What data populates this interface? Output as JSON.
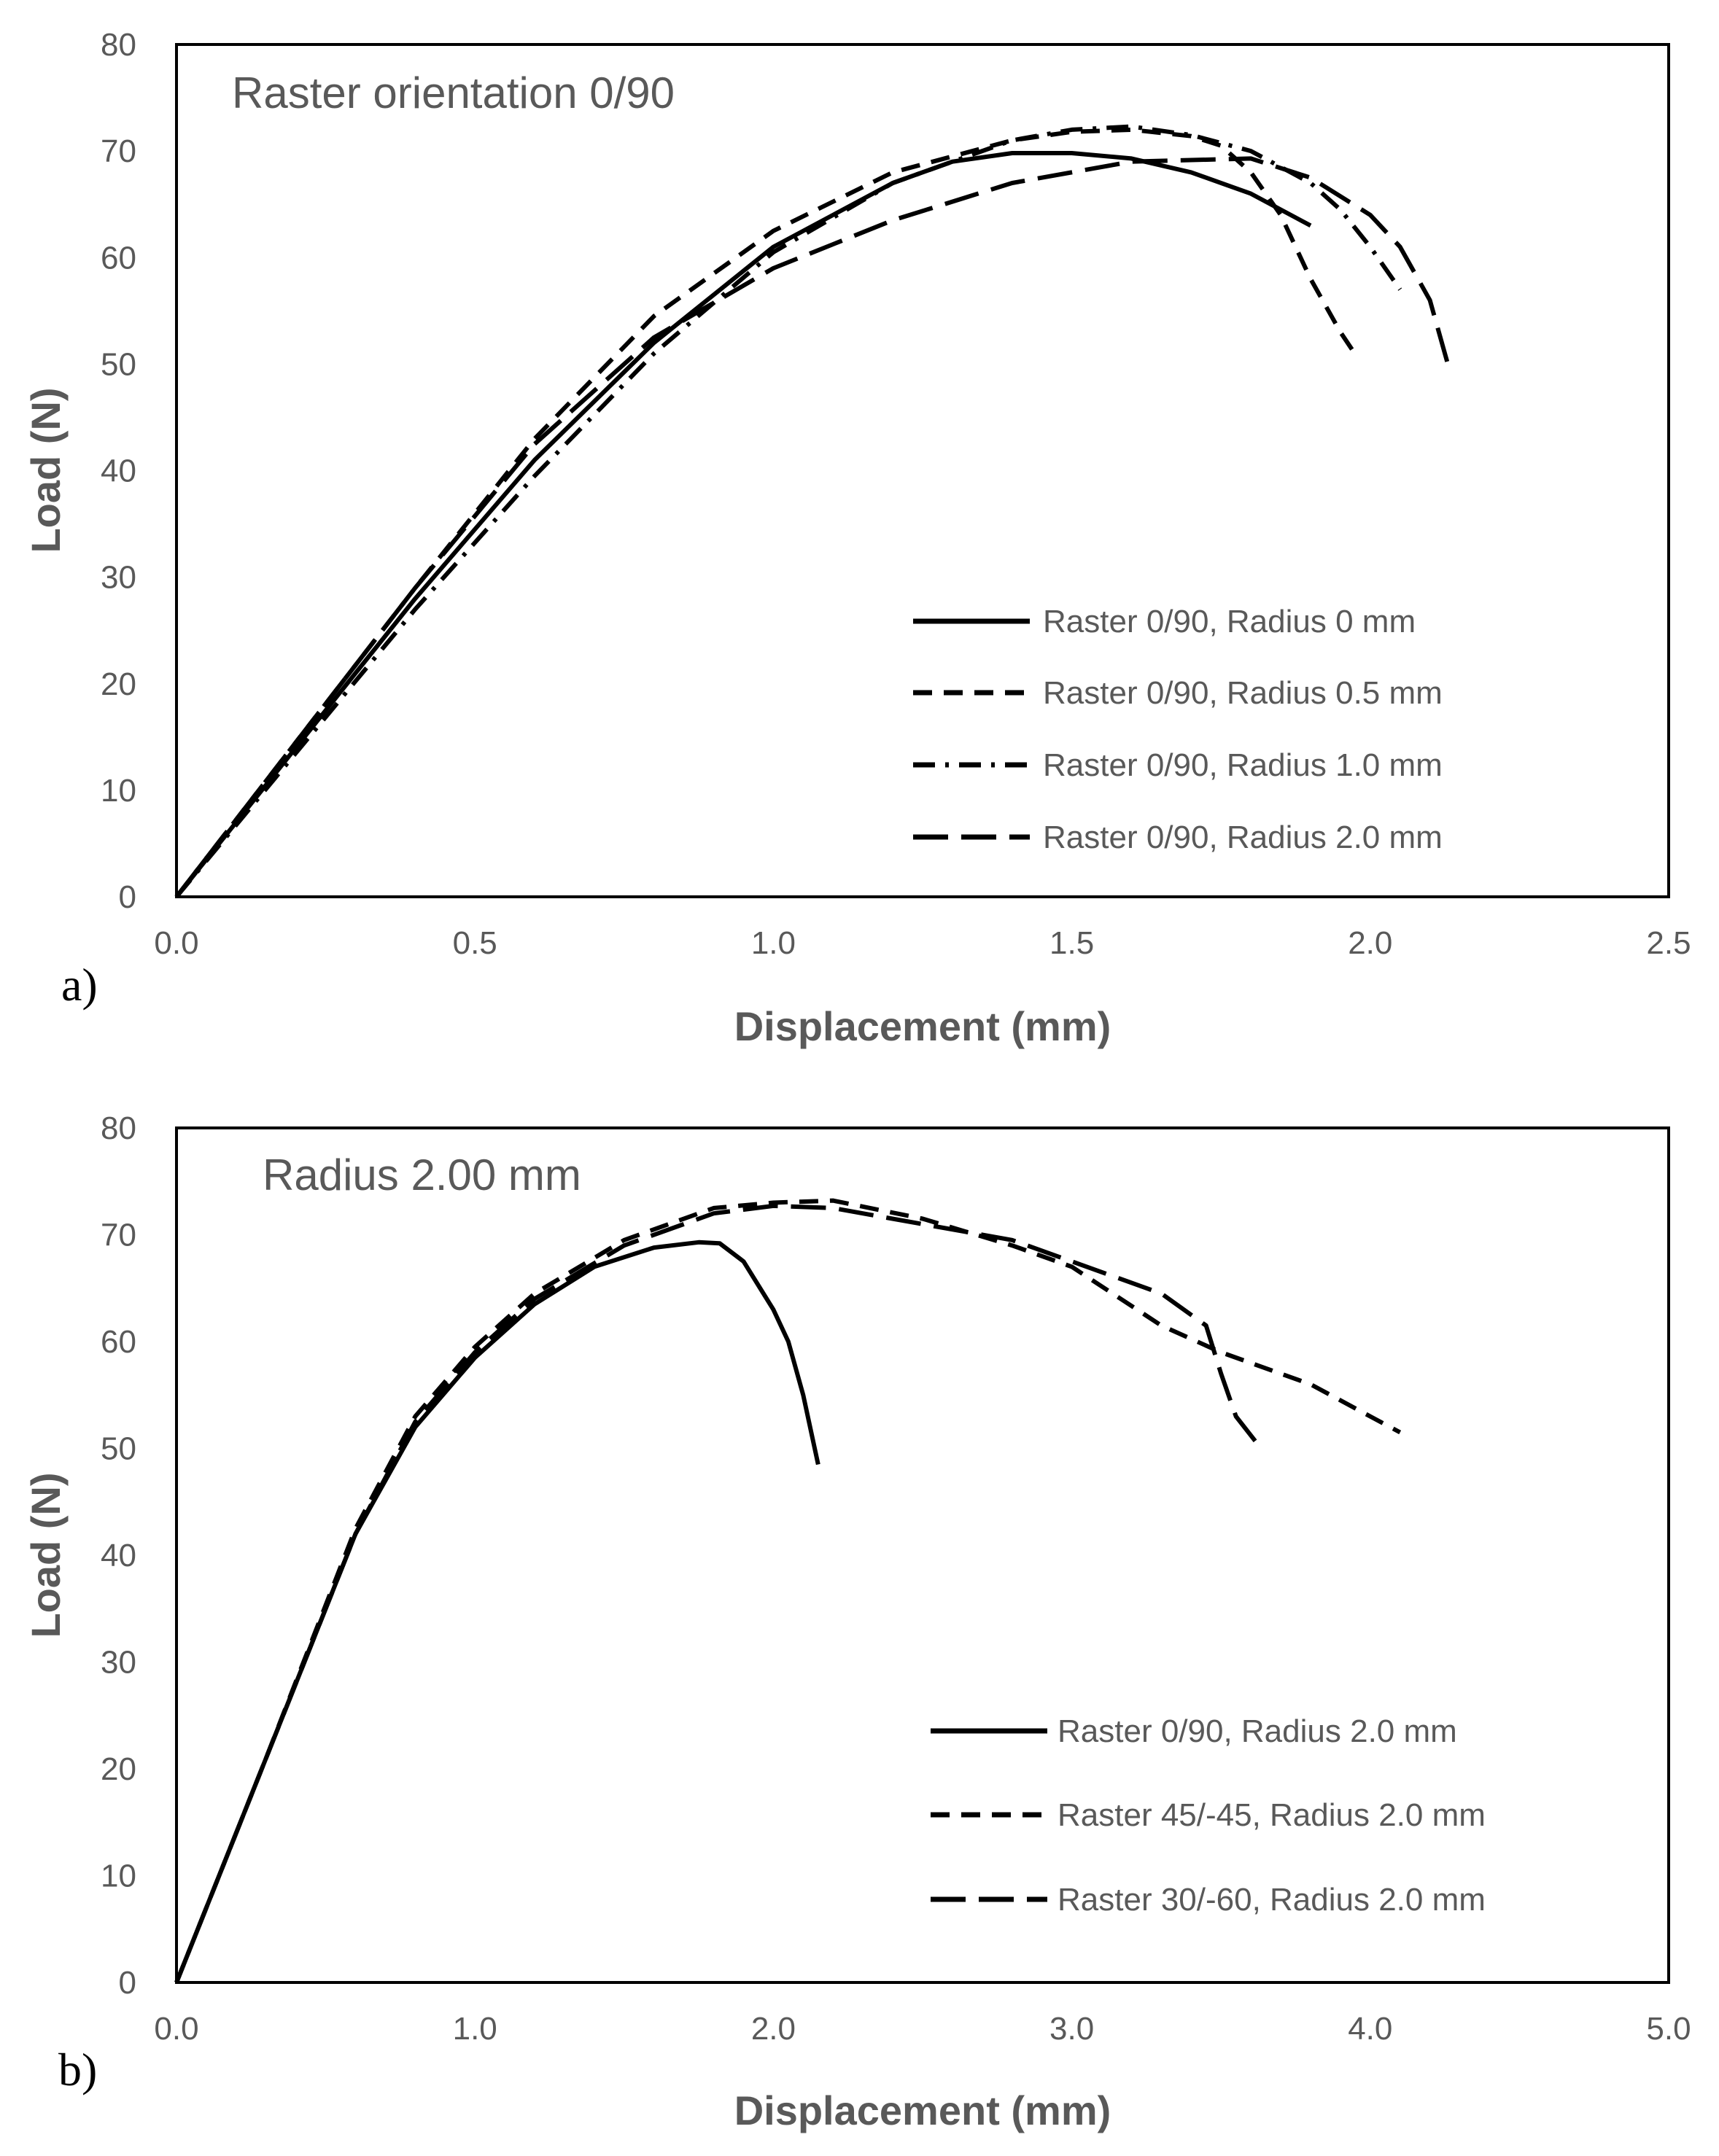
{
  "colors": {
    "line": "#000000",
    "text": "#595959",
    "frame": "#000000"
  },
  "chart_data": [
    {
      "type": "line",
      "panel_label": "a)",
      "annotation": "Raster orientation 0/90",
      "xlabel": "Displacement (mm)",
      "ylabel": "Load (N)",
      "xlim": [
        0,
        2.5
      ],
      "ylim": [
        0,
        80
      ],
      "xticks": [
        0,
        0.5,
        1.0,
        1.5,
        2.0,
        2.5
      ],
      "xtick_labels": [
        "0.0",
        "0.5",
        "1.0",
        "1.5",
        "2.0",
        "2.5"
      ],
      "yticks": [
        0,
        10,
        20,
        30,
        40,
        50,
        60,
        70,
        80
      ],
      "ytick_labels": [
        "0",
        "10",
        "20",
        "30",
        "40",
        "50",
        "60",
        "70",
        "80"
      ],
      "legend_position": "lower-right",
      "series": [
        {
          "name": "Raster 0/90, Radius 0 mm",
          "style": "solid",
          "x": [
            0,
            0.2,
            0.4,
            0.6,
            0.8,
            1.0,
            1.2,
            1.3,
            1.4,
            1.5,
            1.6,
            1.7,
            1.8,
            1.9
          ],
          "y": [
            0,
            14,
            28,
            41,
            52,
            61,
            67,
            69,
            69.8,
            69.8,
            69.3,
            68,
            66,
            63
          ]
        },
        {
          "name": "Raster 0/90, Radius 0.5 mm",
          "style": "dashed",
          "x": [
            0,
            0.2,
            0.4,
            0.6,
            0.8,
            1.0,
            1.2,
            1.4,
            1.5,
            1.6,
            1.7,
            1.75,
            1.8,
            1.85,
            1.9,
            1.95,
            1.98
          ],
          "y": [
            0,
            14.5,
            29,
            43,
            54.5,
            62.5,
            68,
            71,
            71.8,
            72,
            71.4,
            70.5,
            68,
            64,
            58,
            53,
            50.5
          ]
        },
        {
          "name": "Raster 0/90, Radius 1.0 mm",
          "style": "dash-dot",
          "x": [
            0,
            0.2,
            0.4,
            0.6,
            0.8,
            1.0,
            1.2,
            1.4,
            1.5,
            1.6,
            1.7,
            1.8,
            1.9,
            1.95,
            2.0,
            2.05
          ],
          "y": [
            0,
            13.5,
            27,
            39.5,
            51,
            60.5,
            67,
            71,
            72,
            72.3,
            71.5,
            70,
            67,
            64.5,
            61,
            57
          ]
        },
        {
          "name": "Raster 0/90, Radius 2.0 mm",
          "style": "long-dash",
          "x": [
            0,
            0.2,
            0.4,
            0.6,
            0.8,
            1.0,
            1.2,
            1.4,
            1.6,
            1.8,
            1.9,
            2.0,
            2.05,
            2.1,
            2.13
          ],
          "y": [
            0,
            14.5,
            29,
            42.5,
            52.5,
            59,
            63.5,
            67,
            69,
            69.3,
            67.5,
            64,
            61,
            56,
            50
          ]
        }
      ]
    },
    {
      "type": "line",
      "panel_label": "b)",
      "annotation": "Radius 2.00 mm",
      "xlabel": "Displacement (mm)",
      "ylabel": "Load (N)",
      "xlim": [
        0,
        5.0
      ],
      "ylim": [
        0,
        80
      ],
      "xticks": [
        0,
        1.0,
        2.0,
        3.0,
        4.0,
        5.0
      ],
      "xtick_labels": [
        "0.0",
        "1.0",
        "2.0",
        "3.0",
        "4.0",
        "5.0"
      ],
      "yticks": [
        0,
        10,
        20,
        30,
        40,
        50,
        60,
        70,
        80
      ],
      "ytick_labels": [
        "0",
        "10",
        "20",
        "30",
        "40",
        "50",
        "60",
        "70",
        "80"
      ],
      "legend_position": "lower-right",
      "series": [
        {
          "name": "Raster 0/90, Radius 2.0 mm",
          "style": "solid",
          "x": [
            0,
            0.3,
            0.6,
            0.8,
            1.0,
            1.2,
            1.4,
            1.6,
            1.75,
            1.82,
            1.9,
            2.0,
            2.05,
            2.1,
            2.15
          ],
          "y": [
            0,
            21,
            42,
            52,
            58.5,
            63.5,
            67,
            68.8,
            69.3,
            69.2,
            67.5,
            63,
            60,
            55,
            48.5
          ]
        },
        {
          "name": "Raster 45/-45, Radius 2.0 mm",
          "style": "dashed",
          "x": [
            0,
            0.3,
            0.6,
            0.8,
            1.0,
            1.2,
            1.5,
            1.8,
            2.0,
            2.2,
            2.5,
            2.8,
            3.0,
            3.3,
            3.5,
            3.8,
            4.0,
            4.1
          ],
          "y": [
            0,
            21,
            42.5,
            53,
            59.5,
            64.5,
            69.5,
            72.5,
            73,
            73.2,
            71.5,
            69,
            67,
            61.5,
            59,
            56,
            53,
            51.5
          ]
        },
        {
          "name": "Raster 30/-60, Radius 2.0 mm",
          "style": "long-dash",
          "x": [
            0,
            0.3,
            0.6,
            0.8,
            1.0,
            1.2,
            1.5,
            1.8,
            2.0,
            2.2,
            2.5,
            2.8,
            3.0,
            3.3,
            3.45,
            3.5,
            3.55,
            3.62
          ],
          "y": [
            0,
            21,
            42,
            52.5,
            59,
            64,
            69,
            72,
            72.7,
            72.5,
            71,
            69.5,
            67.5,
            64.5,
            61.5,
            57,
            53,
            50.5
          ]
        }
      ]
    }
  ]
}
